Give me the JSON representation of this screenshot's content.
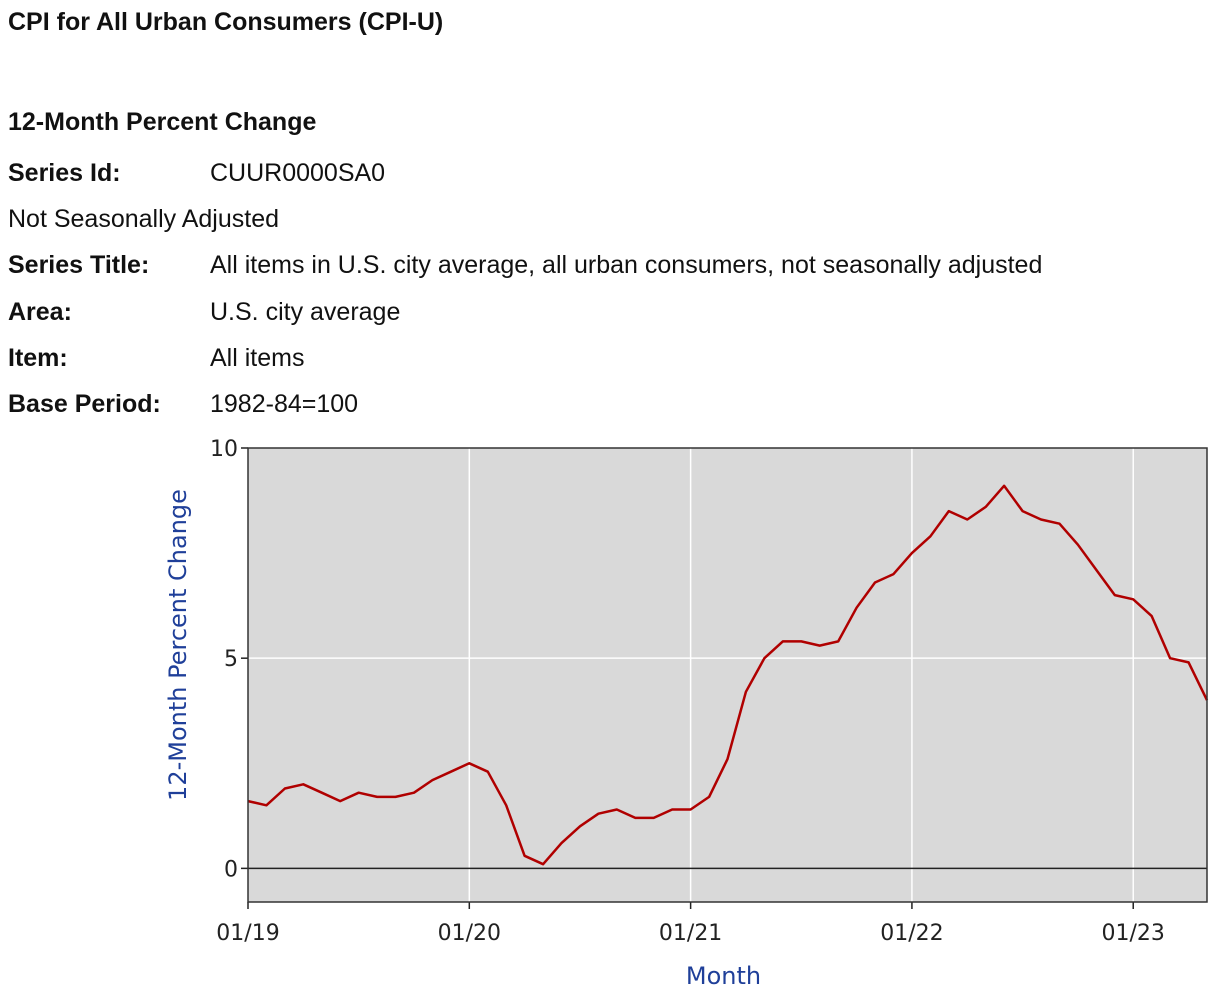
{
  "header": {
    "title": "CPI for All Urban Consumers (CPI-U)",
    "subtitle": "12-Month Percent Change"
  },
  "series_info": {
    "series_id_label": "Series Id:",
    "series_id": "CUUR0000SA0",
    "adjustment": "Not Seasonally Adjusted",
    "series_title_label": "Series Title:",
    "series_title": "All items in U.S. city average, all urban consumers, not seasonally adjusted",
    "area_label": "Area:",
    "area": "U.S. city average",
    "item_label": "Item:",
    "item": "All items",
    "base_period_label": "Base Period:",
    "base_period": "1982-84=100"
  },
  "colors": {
    "plot_background": "#d9d9d9",
    "line": "#b00000",
    "axis_title": "#1f3f99",
    "grid": "#ffffff"
  },
  "chart_data": {
    "type": "line",
    "xlabel": "Month",
    "ylabel": "12-Month Percent Change",
    "ylim": [
      -0.8,
      10
    ],
    "y_ticks": [
      0,
      5,
      10
    ],
    "x_ticks": [
      "01/19",
      "01/20",
      "01/21",
      "01/22",
      "01/23"
    ],
    "grid": true,
    "series": [
      {
        "x": [
          "2019-01",
          "2019-02",
          "2019-03",
          "2019-04",
          "2019-05",
          "2019-06",
          "2019-07",
          "2019-08",
          "2019-09",
          "2019-10",
          "2019-11",
          "2019-12",
          "2020-01",
          "2020-02",
          "2020-03",
          "2020-04",
          "2020-05",
          "2020-06",
          "2020-07",
          "2020-08",
          "2020-09",
          "2020-10",
          "2020-11",
          "2020-12",
          "2021-01",
          "2021-02",
          "2021-03",
          "2021-04",
          "2021-05",
          "2021-06",
          "2021-07",
          "2021-08",
          "2021-09",
          "2021-10",
          "2021-11",
          "2021-12",
          "2022-01",
          "2022-02",
          "2022-03",
          "2022-04",
          "2022-05",
          "2022-06",
          "2022-07",
          "2022-08",
          "2022-09",
          "2022-10",
          "2022-11",
          "2022-12",
          "2023-01",
          "2023-02",
          "2023-03",
          "2023-04",
          "2023-05"
        ],
        "values": [
          1.6,
          1.5,
          1.9,
          2.0,
          1.8,
          1.6,
          1.8,
          1.7,
          1.7,
          1.8,
          2.1,
          2.3,
          2.5,
          2.3,
          1.5,
          0.3,
          0.1,
          0.6,
          1.0,
          1.3,
          1.4,
          1.2,
          1.2,
          1.4,
          1.4,
          1.7,
          2.6,
          4.2,
          5.0,
          5.4,
          5.4,
          5.3,
          5.4,
          6.2,
          6.8,
          7.0,
          7.5,
          7.9,
          8.5,
          8.3,
          8.6,
          9.1,
          8.5,
          8.3,
          8.2,
          7.7,
          7.1,
          6.5,
          6.4,
          6.0,
          5.0,
          4.9,
          4.0
        ]
      }
    ]
  }
}
